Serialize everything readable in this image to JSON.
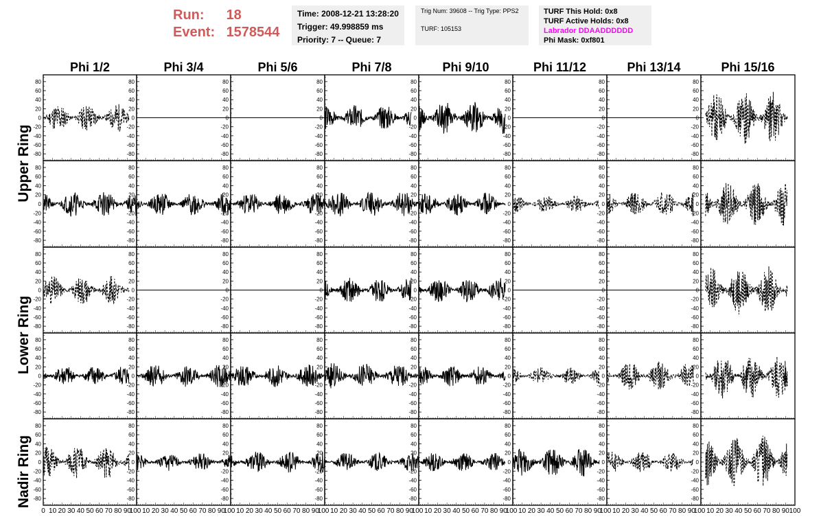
{
  "header": {
    "run_label": "Run:",
    "run_value": "18",
    "event_label": "Event:",
    "event_value": "1578544",
    "time": "Time: 2008-12-21 13:28:20",
    "trigger": "Trigger: 49.998859 ms",
    "priority": "Priority: 7 -- Queue: 7",
    "trig_num": "Trig Num: 39608 -- Trig Type: PPS2",
    "turf": "TURF: 105153",
    "turf_this_hold": "TURF This Hold: 0x8",
    "turf_active_holds": "TURF Active Holds: 0x8",
    "labrador": "Labrador DDAADDDDDD",
    "phi_mask": "Phi Mask: 0xf801"
  },
  "columns": [
    "Phi 1/2",
    "Phi 3/4",
    "Phi 5/6",
    "Phi 7/8",
    "Phi 9/10",
    "Phi 11/12",
    "Phi 13/14",
    "Phi 15/16"
  ],
  "ring_labels": {
    "upper": "Upper Ring",
    "lower": "Lower Ring",
    "nadir": "Nadir Ring"
  },
  "colors": {
    "accent": "#d05a5a",
    "info_box": "#efefef",
    "labrador": "#ff00ff",
    "trace": "#000000"
  },
  "chart_data": {
    "type": "line",
    "grid_rows": 5,
    "grid_cols": 8,
    "ylim": [
      -95,
      95
    ],
    "y_ticks": [
      80,
      60,
      40,
      20,
      0,
      -20,
      -40,
      -60,
      -80
    ],
    "xlim": [
      0,
      100
    ],
    "x_tick_labels_first": [
      "0",
      "10",
      "20",
      "30",
      "40",
      "50",
      "60",
      "70",
      "80",
      "90",
      "100"
    ],
    "x_tick_labels_middle": [
      "10",
      "20",
      "30",
      "40",
      "50",
      "60",
      "70",
      "80",
      "90",
      "100"
    ],
    "x_tick_labels_last": [
      "10",
      "20",
      "30",
      "40",
      "50",
      "60",
      "70",
      "80",
      "90",
      "100"
    ],
    "traces": [
      [
        {
          "style": "dashed",
          "amp": 25,
          "x0": 0,
          "x1": 92,
          "seed": 11
        },
        {
          "style": "flat",
          "amp": 0,
          "x0": 0,
          "x1": 100,
          "seed": 12
        },
        {
          "style": "flat",
          "amp": 0,
          "x0": 0,
          "x1": 100,
          "seed": 13
        },
        {
          "style": "solid",
          "amp": 22,
          "x0": 0,
          "x1": 92,
          "seed": 14
        },
        {
          "style": "solid",
          "amp": 28,
          "x0": 0,
          "x1": 92,
          "seed": 15
        },
        {
          "style": "flat",
          "amp": 0,
          "x0": 0,
          "x1": 100,
          "seed": 16
        },
        {
          "style": "flat",
          "amp": 0,
          "x0": 0,
          "x1": 100,
          "seed": 17
        },
        {
          "style": "dashed",
          "amp": 45,
          "x0": 5,
          "x1": 92,
          "seed": 18
        }
      ],
      [
        {
          "style": "solid",
          "amp": 22,
          "x0": 0,
          "x1": 100,
          "seed": 21
        },
        {
          "style": "solid",
          "amp": 20,
          "x0": 0,
          "x1": 100,
          "seed": 22
        },
        {
          "style": "solid",
          "amp": 20,
          "x0": 0,
          "x1": 100,
          "seed": 23
        },
        {
          "style": "solid",
          "amp": 22,
          "x0": 0,
          "x1": 100,
          "seed": 24
        },
        {
          "style": "solid",
          "amp": 20,
          "x0": 0,
          "x1": 92,
          "seed": 25
        },
        {
          "style": "dashed",
          "amp": 15,
          "x0": 0,
          "x1": 92,
          "seed": 26
        },
        {
          "style": "dashed",
          "amp": 22,
          "x0": 0,
          "x1": 92,
          "seed": 27
        },
        {
          "style": "dashed",
          "amp": 40,
          "x0": 5,
          "x1": 92,
          "seed": 28
        }
      ],
      [
        {
          "style": "dashed",
          "amp": 25,
          "x0": 0,
          "x1": 92,
          "seed": 31
        },
        {
          "style": "flat",
          "amp": 0,
          "x0": 0,
          "x1": 100,
          "seed": 32
        },
        {
          "style": "flat",
          "amp": 0,
          "x0": 0,
          "x1": 100,
          "seed": 33
        },
        {
          "style": "solid",
          "amp": 22,
          "x0": 0,
          "x1": 92,
          "seed": 34
        },
        {
          "style": "solid",
          "amp": 22,
          "x0": 0,
          "x1": 92,
          "seed": 35
        },
        {
          "style": "flat",
          "amp": 0,
          "x0": 0,
          "x1": 100,
          "seed": 36
        },
        {
          "style": "flat",
          "amp": 0,
          "x0": 0,
          "x1": 100,
          "seed": 37
        },
        {
          "style": "dashed",
          "amp": 42,
          "x0": 5,
          "x1": 92,
          "seed": 38
        }
      ],
      [
        {
          "style": "solid",
          "amp": 18,
          "x0": 0,
          "x1": 92,
          "seed": 41
        },
        {
          "style": "solid",
          "amp": 20,
          "x0": 0,
          "x1": 100,
          "seed": 42
        },
        {
          "style": "solid",
          "amp": 20,
          "x0": 0,
          "x1": 100,
          "seed": 43
        },
        {
          "style": "solid",
          "amp": 22,
          "x0": 0,
          "x1": 100,
          "seed": 44
        },
        {
          "style": "solid",
          "amp": 18,
          "x0": 0,
          "x1": 92,
          "seed": 45
        },
        {
          "style": "dashed",
          "amp": 15,
          "x0": 0,
          "x1": 92,
          "seed": 46
        },
        {
          "style": "dashed",
          "amp": 25,
          "x0": 0,
          "x1": 92,
          "seed": 47
        },
        {
          "style": "dashed",
          "amp": 42,
          "x0": 5,
          "x1": 92,
          "seed": 48
        }
      ],
      [
        {
          "style": "dashed",
          "amp": 28,
          "x0": 0,
          "x1": 92,
          "seed": 51
        },
        {
          "style": "solid",
          "amp": 15,
          "x0": 0,
          "x1": 100,
          "seed": 52
        },
        {
          "style": "solid",
          "amp": 18,
          "x0": 0,
          "x1": 100,
          "seed": 53
        },
        {
          "style": "solid",
          "amp": 16,
          "x0": 0,
          "x1": 100,
          "seed": 54
        },
        {
          "style": "solid",
          "amp": 16,
          "x0": 0,
          "x1": 92,
          "seed": 55
        },
        {
          "style": "solid",
          "amp": 25,
          "x0": 0,
          "x1": 92,
          "seed": 56
        },
        {
          "style": "dashed",
          "amp": 18,
          "x0": 0,
          "x1": 92,
          "seed": 57
        },
        {
          "style": "dashed",
          "amp": 45,
          "x0": 5,
          "x1": 92,
          "seed": 58
        }
      ]
    ]
  }
}
